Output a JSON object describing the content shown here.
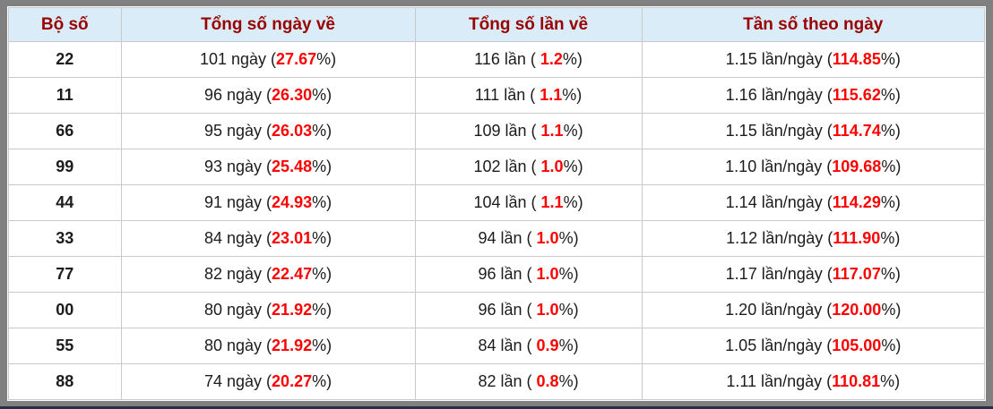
{
  "table": {
    "headers": [
      "Bộ số",
      "Tổng số ngày về",
      "Tổng số lần về",
      "Tần số theo ngày"
    ],
    "rows": [
      {
        "pair": "22",
        "days": {
          "pre": "101 ngày (",
          "value": "27.67",
          "post": "%)"
        },
        "times": {
          "pre": "116 lần ( ",
          "value": "1.2",
          "post": "%)"
        },
        "freq": {
          "pre": "1.15 lần/ngày (",
          "value": "114.85",
          "post": "%)"
        }
      },
      {
        "pair": "11",
        "days": {
          "pre": "96 ngày (",
          "value": "26.30",
          "post": "%)"
        },
        "times": {
          "pre": "111 lần ( ",
          "value": "1.1",
          "post": "%)"
        },
        "freq": {
          "pre": "1.16 lần/ngày (",
          "value": "115.62",
          "post": "%)"
        }
      },
      {
        "pair": "66",
        "days": {
          "pre": "95 ngày (",
          "value": "26.03",
          "post": "%)"
        },
        "times": {
          "pre": "109 lần ( ",
          "value": "1.1",
          "post": "%)"
        },
        "freq": {
          "pre": "1.15 lần/ngày (",
          "value": "114.74",
          "post": "%)"
        }
      },
      {
        "pair": "99",
        "days": {
          "pre": "93 ngày (",
          "value": "25.48",
          "post": "%)"
        },
        "times": {
          "pre": "102 lần ( ",
          "value": "1.0",
          "post": "%)"
        },
        "freq": {
          "pre": "1.10 lần/ngày (",
          "value": "109.68",
          "post": "%)"
        }
      },
      {
        "pair": "44",
        "days": {
          "pre": "91 ngày (",
          "value": "24.93",
          "post": "%)"
        },
        "times": {
          "pre": "104 lần ( ",
          "value": "1.1",
          "post": "%)"
        },
        "freq": {
          "pre": "1.14 lần/ngày (",
          "value": "114.29",
          "post": "%)"
        }
      },
      {
        "pair": "33",
        "days": {
          "pre": "84 ngày (",
          "value": "23.01",
          "post": "%)"
        },
        "times": {
          "pre": "94 lần ( ",
          "value": "1.0",
          "post": "%)"
        },
        "freq": {
          "pre": "1.12 lần/ngày (",
          "value": "111.90",
          "post": "%)"
        }
      },
      {
        "pair": "77",
        "days": {
          "pre": "82 ngày (",
          "value": "22.47",
          "post": "%)"
        },
        "times": {
          "pre": "96 lần ( ",
          "value": "1.0",
          "post": "%)"
        },
        "freq": {
          "pre": "1.17 lần/ngày (",
          "value": "117.07",
          "post": "%)"
        }
      },
      {
        "pair": "00",
        "days": {
          "pre": "80 ngày (",
          "value": "21.92",
          "post": "%)"
        },
        "times": {
          "pre": "96 lần ( ",
          "value": "1.0",
          "post": "%)"
        },
        "freq": {
          "pre": "1.20 lần/ngày (",
          "value": "120.00",
          "post": "%)"
        }
      },
      {
        "pair": "55",
        "days": {
          "pre": "80 ngày (",
          "value": "21.92",
          "post": "%)"
        },
        "times": {
          "pre": "84 lần ( ",
          "value": "0.9",
          "post": "%)"
        },
        "freq": {
          "pre": "1.05 lần/ngày (",
          "value": "105.00",
          "post": "%)"
        }
      },
      {
        "pair": "88",
        "days": {
          "pre": "74 ngày (",
          "value": "20.27",
          "post": "%)"
        },
        "times": {
          "pre": "82 lần ( ",
          "value": "0.8",
          "post": "%)"
        },
        "freq": {
          "pre": "1.11 lần/ngày (",
          "value": "110.81",
          "post": "%)"
        }
      }
    ]
  },
  "colors": {
    "frame": "#808080",
    "header_bg": "#d9ecf7",
    "header_text": "#990000",
    "highlight": "#ff0000",
    "border": "#c9c9c9",
    "body_text": "#1c1c1c",
    "bottom_strip": "#2b2b4a"
  }
}
